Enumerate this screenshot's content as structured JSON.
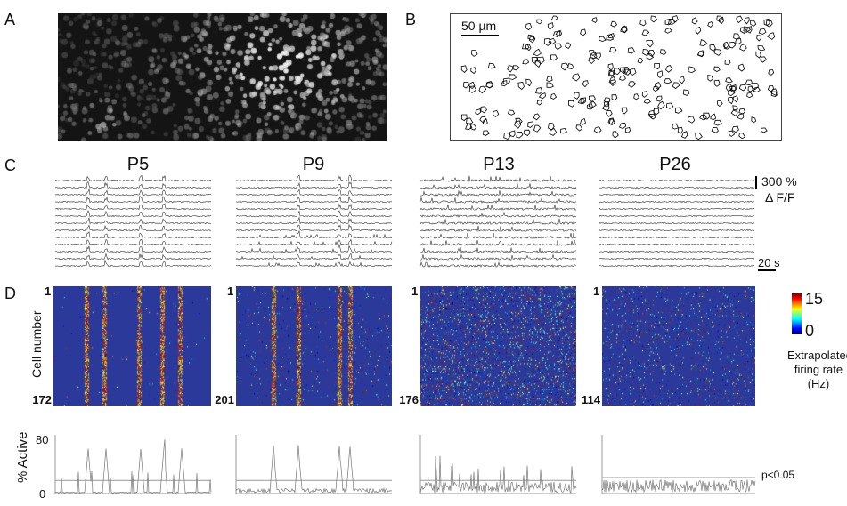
{
  "panels": {
    "a": "A",
    "b": "B",
    "c": "C",
    "d": "D"
  },
  "scale_b": "50 µm",
  "ages": [
    "P5",
    "P9",
    "P13",
    "P26"
  ],
  "cell_counts": [
    "172",
    "201",
    "176",
    "114"
  ],
  "cell_first": "1",
  "scale_c": {
    "amp": "300 %",
    "unit": "Δ F/F",
    "time": "20 s"
  },
  "heatmap": {
    "ylabel": "Cell number",
    "colorbar_max": "15",
    "colorbar_min": "0",
    "colorbar_label": "Extrapolated firing rate (Hz)",
    "colormap": "jet"
  },
  "active": {
    "ylabel": "% Active",
    "ymax": "80",
    "ymin": "0",
    "threshold_label": "p<0.05"
  },
  "chart_data": {
    "type": "line",
    "series": [
      {
        "name": "P5"
      },
      {
        "name": "P9"
      },
      {
        "name": "P13"
      },
      {
        "name": "P26"
      }
    ],
    "ylim": [
      0,
      80
    ]
  }
}
